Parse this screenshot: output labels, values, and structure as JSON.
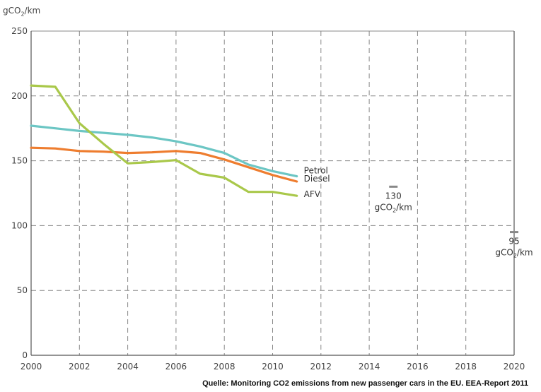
{
  "chart_data": {
    "type": "line",
    "ylabel": {
      "prefix": "gCO",
      "sub": "2",
      "suffix": "/km"
    },
    "xlim": [
      2000,
      2020
    ],
    "ylim": [
      0,
      250
    ],
    "x_ticks": [
      2000,
      2002,
      2004,
      2006,
      2008,
      2010,
      2012,
      2014,
      2016,
      2018,
      2020
    ],
    "y_ticks": [
      0,
      50,
      100,
      150,
      200,
      250
    ],
    "grid": true,
    "x": [
      2000,
      2001,
      2002,
      2003,
      2004,
      2005,
      2006,
      2007,
      2008,
      2009,
      2010,
      2011
    ],
    "series": [
      {
        "name": "Petrol",
        "color": "#6cc6c4",
        "values": [
          177,
          175,
          173,
          171.5,
          170,
          168,
          165,
          161,
          156,
          147,
          142,
          138
        ]
      },
      {
        "name": "Diesel",
        "color": "#ee7d2f",
        "values": [
          160,
          159.5,
          157.5,
          157,
          156,
          156.5,
          157.5,
          156,
          151,
          145,
          139,
          134
        ]
      },
      {
        "name": "AFV",
        "color": "#a9c84a",
        "values": [
          208,
          207,
          179,
          163,
          148,
          149,
          150.5,
          140,
          137,
          126,
          126,
          123
        ]
      }
    ],
    "targets": [
      {
        "year": 2015,
        "value": 130,
        "label": "130",
        "unit_prefix": "gCO",
        "unit_sub": "2",
        "unit_suffix": "/km"
      },
      {
        "year": 2020,
        "value": 95,
        "label": "95",
        "unit_prefix": "gCO",
        "unit_sub": "2",
        "unit_suffix": "/km"
      }
    ],
    "source": "Quelle: Monitoring CO2 emissions from new passenger cars in the EU. EEA-Report 2011"
  }
}
